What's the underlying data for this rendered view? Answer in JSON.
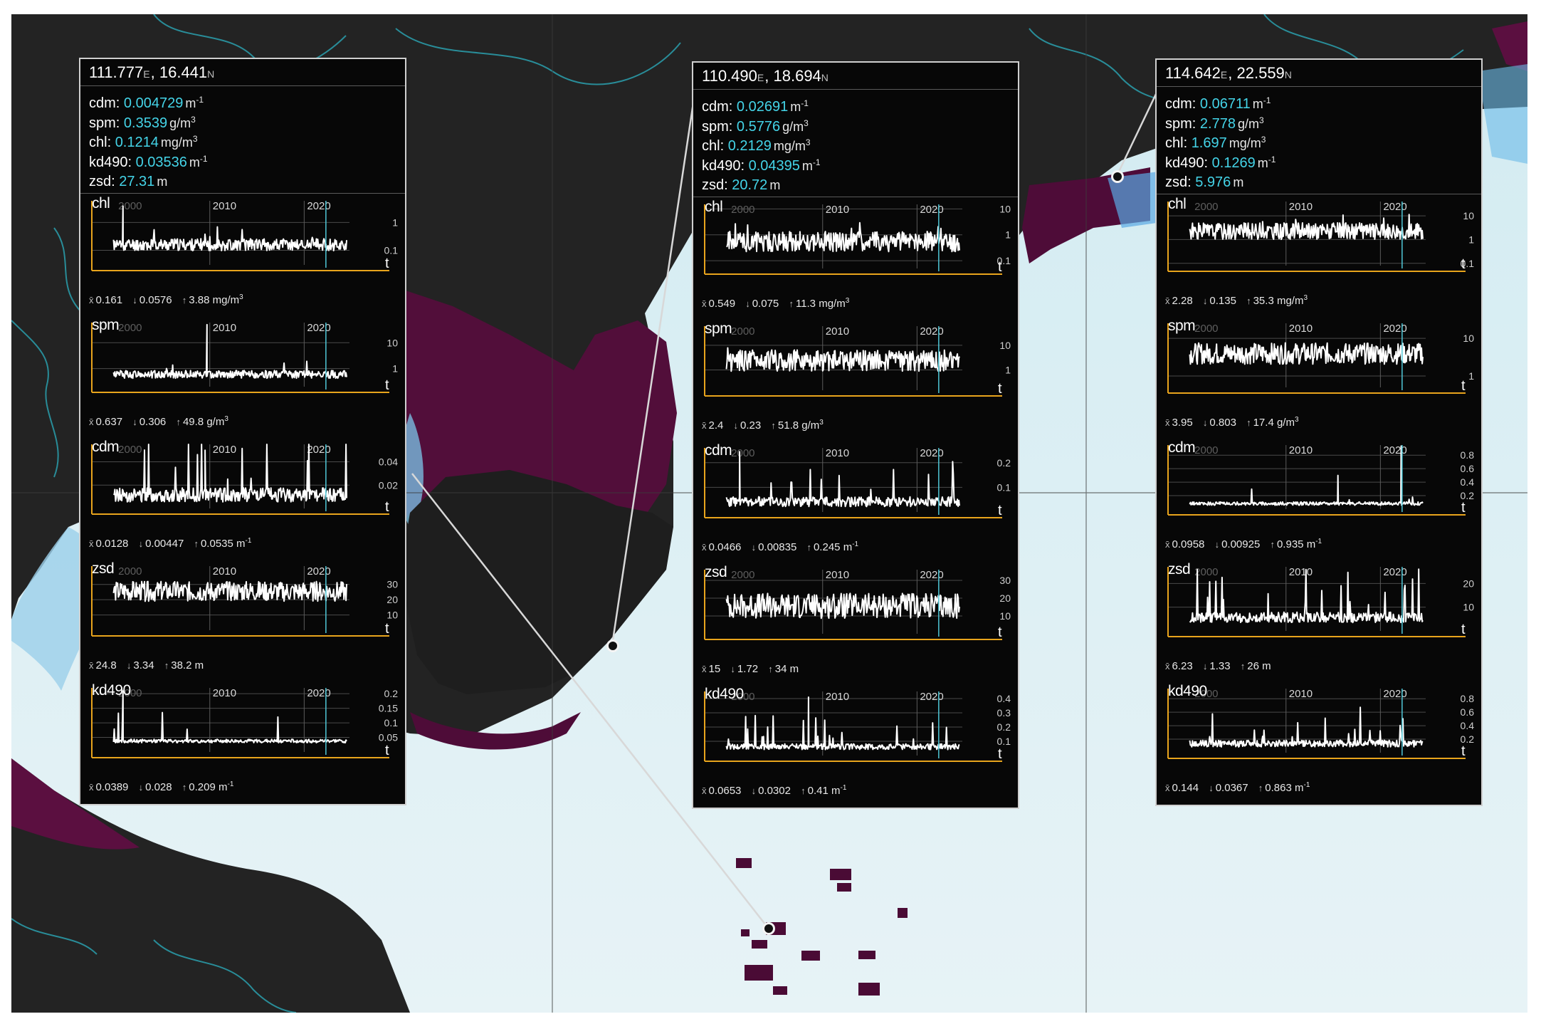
{
  "panels": [
    {
      "id": "left",
      "lon": "111.777",
      "lon_unit": "E",
      "lat": "16.441",
      "lat_unit": "N",
      "sep": ",",
      "readouts": [
        {
          "param": "cdm:",
          "value": "0.004729",
          "unit": "m",
          "sup": "-1"
        },
        {
          "param": "spm:",
          "value": "0.3539",
          "unit": "g/m",
          "sup": "3"
        },
        {
          "param": "chl:",
          "value": "0.1214",
          "unit": "mg/m",
          "sup": "3"
        },
        {
          "param": "kd490:",
          "value": "0.03536",
          "unit": "m",
          "sup": "-1"
        },
        {
          "param": "zsd:",
          "value": "27.31",
          "unit": "m",
          "sup": ""
        }
      ],
      "charts": [
        {
          "title": "chl",
          "scale": "log",
          "ylim": [
            0.03,
            6
          ],
          "y_ticks": [
            {
              "v": 1,
              "label": "1"
            },
            {
              "v": 0.1,
              "label": "0.1"
            }
          ],
          "x_ticks": [
            "2000",
            "2010",
            "2020"
          ],
          "t_label": "t",
          "mean": "0.161",
          "min": "0.0576",
          "max": "3.88",
          "unit": "mg/m",
          "unit_sup": "3",
          "base": 0.16,
          "noise": 0.5,
          "spike": 0.02,
          "seed": 11,
          "spikes": [
            {
              "t": 2000.8,
              "v": 3.88
            }
          ],
          "cap": 6
        },
        {
          "title": "spm",
          "scale": "log",
          "ylim": [
            0.2,
            60
          ],
          "y_ticks": [
            {
              "v": 10,
              "label": "10"
            },
            {
              "v": 1,
              "label": "1"
            }
          ],
          "x_ticks": [
            "2000",
            "2010",
            "2020"
          ],
          "t_label": "t",
          "mean": "0.637",
          "min": "0.306",
          "max": "49.8",
          "unit": "g/m",
          "unit_sup": "3",
          "base": 0.6,
          "noise": 0.35,
          "spike": 0.015,
          "seed": 12,
          "spikes": [
            {
              "t": 2009.7,
              "v": 49.8
            }
          ],
          "cap": 60
        },
        {
          "title": "cdm",
          "scale": "linear",
          "ylim": [
            0,
            0.055
          ],
          "y_ticks": [
            {
              "v": 0.04,
              "label": "0.04"
            },
            {
              "v": 0.02,
              "label": "0.02"
            }
          ],
          "x_ticks": [
            "2000",
            "2010",
            "2020"
          ],
          "t_label": "t",
          "mean": "0.0128",
          "min": "0.00447",
          "max": "0.0535",
          "unit": "m",
          "unit_sup": "-1",
          "base": 0.011,
          "noise": 0.006,
          "spike": 0.06,
          "seed": 13,
          "spikes": [
            {
              "t": 2009.5,
              "v": 0.05
            }
          ],
          "cap": 0.055
        },
        {
          "title": "zsd",
          "scale": "linear",
          "ylim": [
            0,
            42
          ],
          "y_ticks": [
            {
              "v": 30,
              "label": "30"
            },
            {
              "v": 20,
              "label": "20"
            },
            {
              "v": 10,
              "label": "10"
            }
          ],
          "x_ticks": [
            "2000",
            "2010",
            "2020"
          ],
          "t_label": "t",
          "mean": "24.8",
          "min": "3.34",
          "max": "38.2",
          "unit": "m",
          "unit_sup": "",
          "base": 24.8,
          "noise": 6.5,
          "spike": 0,
          "seed": 14,
          "spikes": [],
          "cap": 38.2
        },
        {
          "title": "kd490",
          "scale": "linear",
          "ylim": [
            0,
            0.22
          ],
          "y_ticks": [
            {
              "v": 0.2,
              "label": "0.2"
            },
            {
              "v": 0.15,
              "label": "0.15"
            },
            {
              "v": 0.1,
              "label": "0.1"
            },
            {
              "v": 0.05,
              "label": "0.05"
            }
          ],
          "x_ticks": [
            "2000",
            "2010",
            "2020"
          ],
          "t_label": "t",
          "mean": "0.0389",
          "min": "0.028",
          "max": "0.209",
          "unit": "m",
          "unit_sup": "-1",
          "base": 0.037,
          "noise": 0.006,
          "spike": 0.02,
          "seed": 15,
          "spikes": [
            {
              "t": 2000.8,
              "v": 0.209
            }
          ],
          "cap": 0.22
        }
      ]
    },
    {
      "id": "middle",
      "lon": "110.490",
      "lon_unit": "E",
      "lat": "18.694",
      "lat_unit": "N",
      "sep": ",",
      "readouts": [
        {
          "param": "cdm:",
          "value": "0.02691",
          "unit": "m",
          "sup": "-1"
        },
        {
          "param": "spm:",
          "value": "0.5776",
          "unit": "g/m",
          "sup": "3"
        },
        {
          "param": "chl:",
          "value": "0.2129",
          "unit": "mg/m",
          "sup": "3"
        },
        {
          "param": "kd490:",
          "value": "0.04395",
          "unit": "m",
          "sup": "-1"
        },
        {
          "param": "zsd:",
          "value": "20.72",
          "unit": "m",
          "sup": ""
        }
      ],
      "charts": [
        {
          "title": "chl",
          "scale": "log",
          "ylim": [
            0.05,
            15
          ],
          "y_ticks": [
            {
              "v": 10,
              "label": "10"
            },
            {
              "v": 1,
              "label": "1"
            },
            {
              "v": 0.1,
              "label": "0.1"
            }
          ],
          "x_ticks": [
            "2000",
            "2010",
            "2020"
          ],
          "t_label": "t",
          "mean": "0.549",
          "min": "0.075",
          "max": "11.3",
          "unit": "mg/m",
          "unit_sup": "3",
          "base": 0.55,
          "noise": 0.9,
          "spike": 0.03,
          "seed": 21,
          "spikes": [],
          "cap": 11.3
        },
        {
          "title": "spm",
          "scale": "log",
          "ylim": [
            0.15,
            60
          ],
          "y_ticks": [
            {
              "v": 10,
              "label": "10"
            },
            {
              "v": 1,
              "label": "1"
            }
          ],
          "x_ticks": [
            "2000",
            "2010",
            "2020"
          ],
          "t_label": "t",
          "mean": "2.4",
          "min": "0.23",
          "max": "51.8",
          "unit": "g/m",
          "unit_sup": "3",
          "base": 2.4,
          "noise": 1.0,
          "spike": 0.02,
          "seed": 22,
          "spikes": [],
          "cap": 51.8
        },
        {
          "title": "cdm",
          "scale": "linear",
          "ylim": [
            0,
            0.26
          ],
          "y_ticks": [
            {
              "v": 0.2,
              "label": "0.2"
            },
            {
              "v": 0.1,
              "label": "0.1"
            }
          ],
          "x_ticks": [
            "2000",
            "2010",
            "2020"
          ],
          "t_label": "t",
          "mean": "0.0466",
          "min": "0.00835",
          "max": "0.245",
          "unit": "m",
          "unit_sup": "-1",
          "base": 0.04,
          "noise": 0.02,
          "spike": 0.05,
          "seed": 23,
          "spikes": [
            {
              "t": 2001.2,
              "v": 0.245
            }
          ],
          "cap": 0.26
        },
        {
          "title": "zsd",
          "scale": "linear",
          "ylim": [
            0,
            36
          ],
          "y_ticks": [
            {
              "v": 30,
              "label": "30"
            },
            {
              "v": 20,
              "label": "20"
            },
            {
              "v": 10,
              "label": "10"
            }
          ],
          "x_ticks": [
            "2000",
            "2010",
            "2020"
          ],
          "t_label": "t",
          "mean": "15",
          "min": "1.72",
          "max": "34",
          "unit": "m",
          "unit_sup": "",
          "base": 15,
          "noise": 7,
          "spike": 0,
          "seed": 24,
          "spikes": [],
          "cap": 34
        },
        {
          "title": "kd490",
          "scale": "linear",
          "ylim": [
            0,
            0.45
          ],
          "y_ticks": [
            {
              "v": 0.4,
              "label": "0.4"
            },
            {
              "v": 0.3,
              "label": "0.3"
            },
            {
              "v": 0.2,
              "label": "0.2"
            },
            {
              "v": 0.1,
              "label": "0.1"
            }
          ],
          "x_ticks": [
            "2000",
            "2010",
            "2020"
          ],
          "t_label": "t",
          "mean": "0.0653",
          "min": "0.0302",
          "max": "0.41",
          "unit": "m",
          "unit_sup": "-1",
          "base": 0.06,
          "noise": 0.02,
          "spike": 0.05,
          "seed": 25,
          "spikes": [
            {
              "t": 2008.5,
              "v": 0.41
            }
          ],
          "cap": 0.45
        }
      ]
    },
    {
      "id": "right",
      "lon": "114.642",
      "lon_unit": "E",
      "lat": "22.559",
      "lat_unit": "N",
      "sep": ",",
      "readouts": [
        {
          "param": "cdm:",
          "value": "0.06711",
          "unit": "m",
          "sup": "-1"
        },
        {
          "param": "spm:",
          "value": "2.778",
          "unit": "g/m",
          "sup": "3"
        },
        {
          "param": "chl:",
          "value": "1.697",
          "unit": "mg/m",
          "sup": "3"
        },
        {
          "param": "kd490:",
          "value": "0.1269",
          "unit": "m",
          "sup": "-1"
        },
        {
          "param": "zsd:",
          "value": "5.976",
          "unit": "m",
          "sup": ""
        }
      ],
      "charts": [
        {
          "title": "chl",
          "scale": "log",
          "ylim": [
            0.08,
            40
          ],
          "y_ticks": [
            {
              "v": 10,
              "label": "10"
            },
            {
              "v": 1,
              "label": "1"
            },
            {
              "v": 0.1,
              "label": "0.1"
            }
          ],
          "x_ticks": [
            "2000",
            "2010",
            "2020"
          ],
          "t_label": "t",
          "mean": "2.28",
          "min": "0.135",
          "max": "35.3",
          "unit": "mg/m",
          "unit_sup": "3",
          "base": 2.28,
          "noise": 0.8,
          "spike": 0.03,
          "seed": 31,
          "spikes": [],
          "cap": 35.3
        },
        {
          "title": "spm",
          "scale": "log",
          "ylim": [
            0.5,
            25
          ],
          "y_ticks": [
            {
              "v": 10,
              "label": "10"
            },
            {
              "v": 1,
              "label": "1"
            }
          ],
          "x_ticks": [
            "2000",
            "2010",
            "2020"
          ],
          "t_label": "t",
          "mean": "3.95",
          "min": "0.803",
          "max": "17.4",
          "unit": "g/m",
          "unit_sup": "3",
          "base": 3.95,
          "noise": 0.65,
          "spike": 0,
          "seed": 32,
          "spikes": [],
          "cap": 17.4
        },
        {
          "title": "cdm",
          "scale": "linear",
          "ylim": [
            0,
            0.95
          ],
          "y_ticks": [
            {
              "v": 0.8,
              "label": "0.8"
            },
            {
              "v": 0.6,
              "label": "0.6"
            },
            {
              "v": 0.4,
              "label": "0.4"
            },
            {
              "v": 0.2,
              "label": "0.2"
            }
          ],
          "x_ticks": [
            "2000",
            "2010",
            "2020"
          ],
          "t_label": "t",
          "mean": "0.0958",
          "min": "0.00925",
          "max": "0.935",
          "unit": "m",
          "unit_sup": "-1",
          "base": 0.08,
          "noise": 0.025,
          "spike": 0.012,
          "seed": 33,
          "spikes": [
            {
              "t": 2022.2,
              "v": 0.935
            },
            {
              "t": 2015.5,
              "v": 0.5
            }
          ],
          "cap": 0.95
        },
        {
          "title": "zsd",
          "scale": "linear",
          "ylim": [
            0,
            27
          ],
          "y_ticks": [
            {
              "v": 20,
              "label": "20"
            },
            {
              "v": 10,
              "label": "10"
            }
          ],
          "x_ticks": [
            "2000",
            "2010",
            "2020"
          ],
          "t_label": "t",
          "mean": "6.23",
          "min": "1.33",
          "max": "26",
          "unit": "m",
          "unit_sup": "",
          "base": 5.5,
          "noise": 2.2,
          "spike": 0.04,
          "seed": 34,
          "spikes": [],
          "cap": 26
        },
        {
          "title": "kd490",
          "scale": "linear",
          "ylim": [
            0,
            0.95
          ],
          "y_ticks": [
            {
              "v": 0.8,
              "label": "0.8"
            },
            {
              "v": 0.6,
              "label": "0.6"
            },
            {
              "v": 0.4,
              "label": "0.4"
            },
            {
              "v": 0.2,
              "label": "0.2"
            }
          ],
          "x_ticks": [
            "2000",
            "2010",
            "2020"
          ],
          "t_label": "t",
          "mean": "0.144",
          "min": "0.0367",
          "max": "0.863",
          "unit": "m",
          "unit_sup": "-1",
          "base": 0.13,
          "noise": 0.05,
          "spike": 0.05,
          "seed": 35,
          "spikes": [],
          "cap": 0.863
        }
      ]
    }
  ],
  "stat_symbols": {
    "mean": "x̄",
    "min": "↓",
    "max": "↑"
  },
  "colors": {
    "axis": "#e8a41c",
    "current_year_line": "#4fc8d8",
    "value_text": "#44d4e8",
    "series": "#ffffff",
    "dim_tick": "#5e5e5e",
    "tick": "#d8d8d8"
  },
  "time_range": [
    1997.5,
    2024.8
  ],
  "current_year": 2022.3
}
